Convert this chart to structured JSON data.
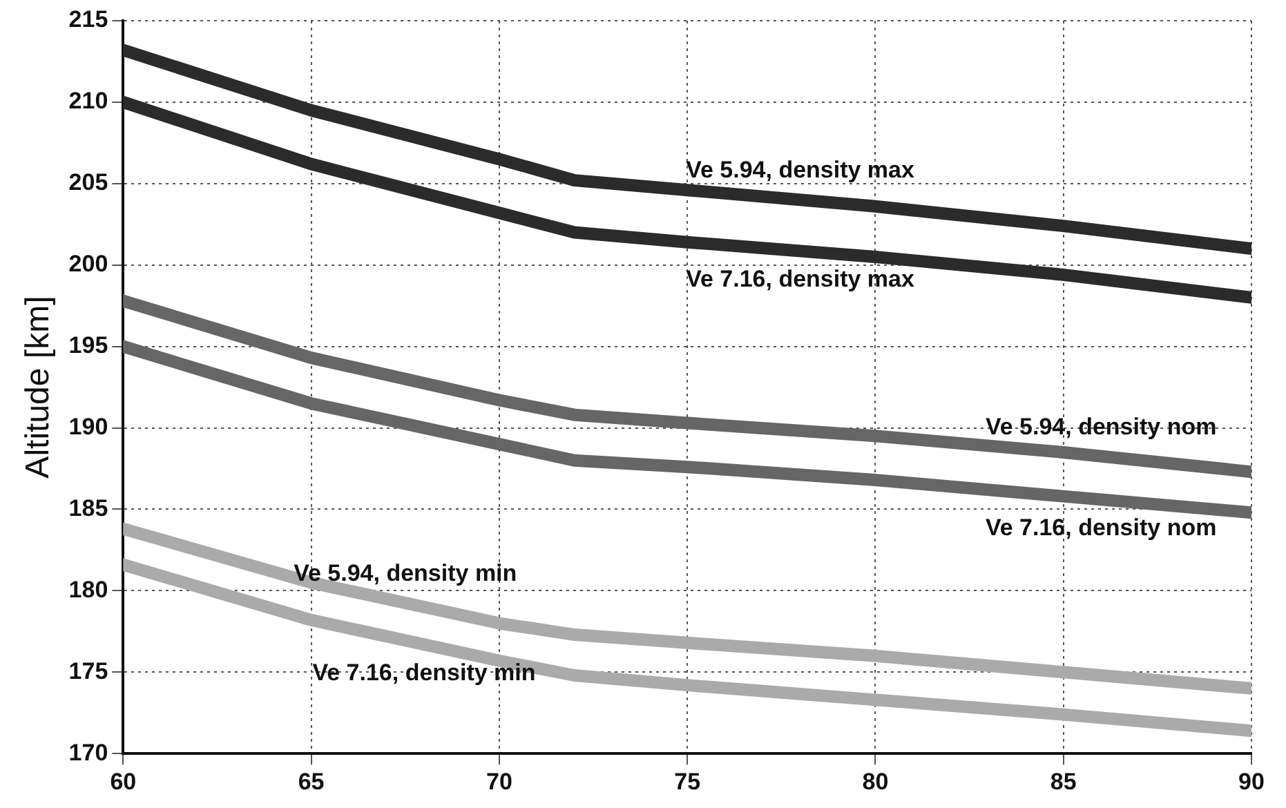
{
  "chart_data": {
    "type": "line",
    "ylabel": "Altitude [km]",
    "x": [
      60,
      65,
      70,
      72,
      75,
      80,
      85,
      90
    ],
    "xlim": [
      60,
      90
    ],
    "xticks": [
      60,
      65,
      70,
      75,
      80,
      85,
      90
    ],
    "ylim": [
      170,
      215
    ],
    "yticks": [
      170,
      175,
      180,
      185,
      190,
      195,
      200,
      205,
      210,
      215
    ],
    "grid": true,
    "legend": false,
    "marker": "none",
    "line_style": "solid",
    "series": [
      {
        "name": "Ve 5.94, density max",
        "color": "#2b2b2b",
        "values": [
          213.2,
          209.5,
          206.5,
          205.2,
          204.6,
          203.6,
          202.4,
          201
        ]
      },
      {
        "name": "Ve 7.16, density max",
        "color": "#2b2b2b",
        "values": [
          210,
          206.2,
          203.2,
          202,
          201.4,
          200.5,
          199.4,
          198
        ]
      },
      {
        "name": "Ve 5.94, density nom",
        "color": "#666666",
        "values": [
          197.8,
          194.3,
          191.7,
          190.8,
          190.3,
          189.5,
          188.5,
          187.3
        ]
      },
      {
        "name": "Ve 7.16, density nom",
        "color": "#666666",
        "values": [
          195,
          191.5,
          189,
          188,
          187.6,
          186.8,
          185.8,
          184.8
        ]
      },
      {
        "name": "Ve 5.94, density min",
        "color": "#aaaaaa",
        "values": [
          183.8,
          180.5,
          178,
          177.3,
          176.8,
          176,
          175,
          174
        ]
      },
      {
        "name": "Ve 7.16, density min",
        "color": "#aaaaaa",
        "values": [
          181.6,
          178.2,
          175.7,
          174.8,
          174.2,
          173.3,
          172.4,
          171.4
        ]
      }
    ]
  }
}
